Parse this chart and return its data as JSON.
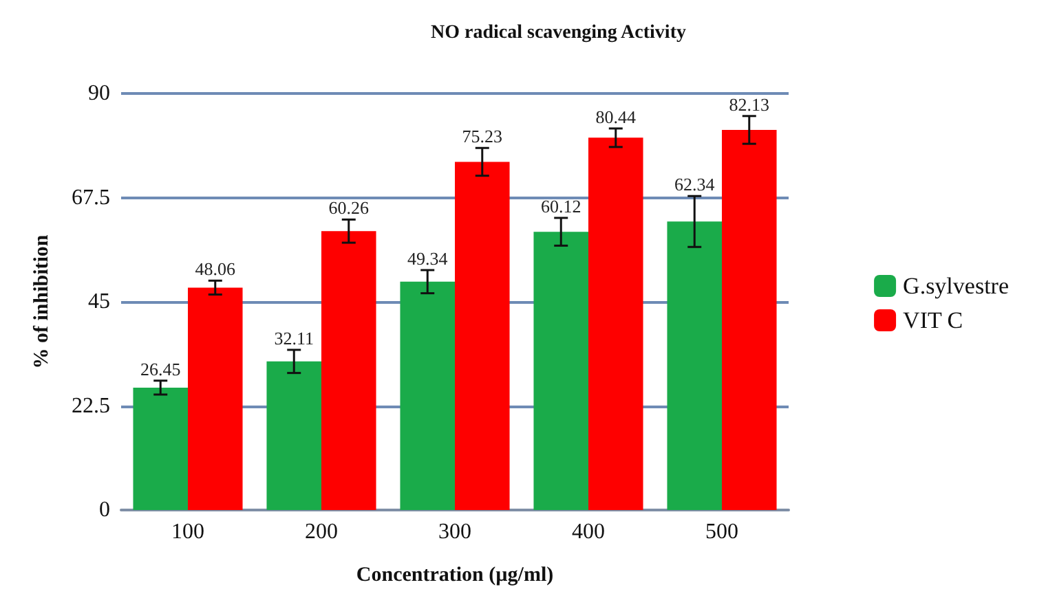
{
  "chart_data": {
    "type": "bar",
    "title": "NO radical scavenging Activity",
    "xlabel": "Concentration (µg/ml)",
    "ylabel": "% of inhibition",
    "categories": [
      "100",
      "200",
      "300",
      "400",
      "500"
    ],
    "series": [
      {
        "name": "G.sylvestre",
        "color": "#1aab4a",
        "values": [
          26.45,
          32.11,
          49.34,
          60.12,
          62.34
        ],
        "errors": [
          1.5,
          2.5,
          2.5,
          3,
          5.5
        ]
      },
      {
        "name": "VIT C",
        "color": "#fe0000",
        "values": [
          48.06,
          60.26,
          75.23,
          80.44,
          82.13
        ],
        "errors": [
          1.5,
          2.5,
          3,
          2,
          3
        ]
      }
    ],
    "ylim": [
      0,
      90
    ],
    "yticks": [
      0,
      22.5,
      45,
      67.5,
      90
    ],
    "grid": "y",
    "legend": "right",
    "data_labels": true
  }
}
